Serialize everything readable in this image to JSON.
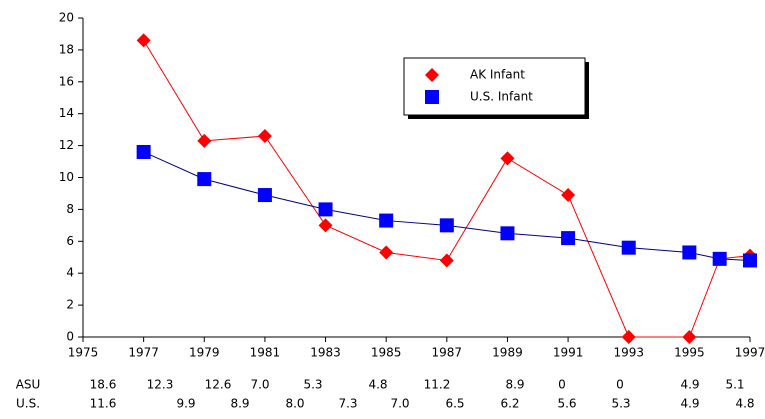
{
  "chart_data": {
    "type": "line",
    "x": [
      1977,
      1979,
      1981,
      1983,
      1985,
      1987,
      1989,
      1991,
      1993,
      1995,
      1996,
      1997
    ],
    "series": [
      {
        "name": "AK Infant",
        "color": "#ff0000",
        "marker": "diamond",
        "values": [
          18.6,
          12.3,
          12.6,
          7.0,
          5.3,
          4.8,
          11.2,
          8.9,
          0,
          0,
          4.9,
          5.1
        ]
      },
      {
        "name": "U.S. Infant",
        "color": "#000080",
        "marker_color": "#0000ff",
        "marker": "square",
        "values": [
          11.6,
          9.9,
          8.9,
          8.0,
          7.3,
          7.0,
          6.5,
          6.2,
          5.6,
          5.3,
          4.9,
          4.8
        ]
      }
    ],
    "xlim": [
      1975,
      1997
    ],
    "xticks": [
      1975,
      1977,
      1979,
      1981,
      1983,
      1985,
      1987,
      1989,
      1991,
      1993,
      1995,
      1997
    ],
    "ylim": [
      0,
      20
    ],
    "yticks": [
      0,
      2,
      4,
      6,
      8,
      10,
      12,
      14,
      16,
      18,
      20
    ],
    "grid": false,
    "legend": "top-right",
    "table": {
      "rows": [
        [
          "ASU",
          "18.6",
          "12.3",
          "12.6",
          "7.0",
          "5.3",
          "4.8",
          "11.2",
          "8.9",
          "0",
          "0",
          "4.9",
          "5.1"
        ],
        [
          "U.S.",
          "11.6",
          "9.9",
          "8.9",
          "8.0",
          "7.3",
          "7.0",
          "6.5",
          "6.2",
          "5.6",
          "5.3",
          "4.9",
          "4.8"
        ]
      ]
    }
  }
}
